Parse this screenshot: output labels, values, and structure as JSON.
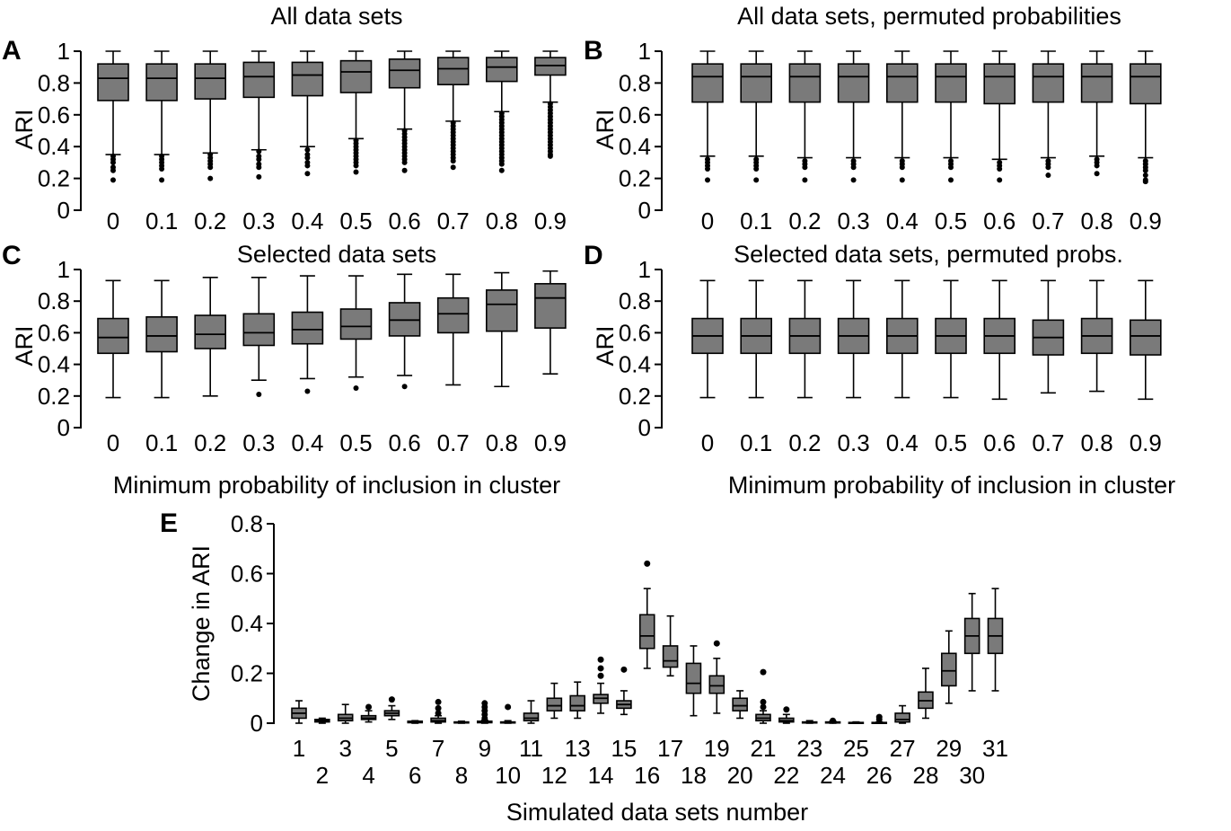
{
  "colors": {
    "box_fill": "#7a7a7a",
    "line": "#000000",
    "background": "#ffffff"
  },
  "chart_data": [
    {
      "panel": "A",
      "type": "boxplot",
      "title": "All data sets",
      "xlabel": "",
      "ylabel": "ARI",
      "ylim": [
        0,
        1
      ],
      "yticks": [
        "0",
        "0.2",
        "0.4",
        "0.6",
        "0.8",
        "1"
      ],
      "categories": [
        "0",
        "0.1",
        "0.2",
        "0.3",
        "0.4",
        "0.5",
        "0.6",
        "0.7",
        "0.8",
        "0.9"
      ],
      "boxes": [
        {
          "whislo": 0.35,
          "q1": 0.69,
          "med": 0.83,
          "q3": 0.92,
          "whishi": 1.0,
          "fliers": [
            0.34,
            0.32,
            0.3,
            0.27,
            0.25,
            0.19
          ]
        },
        {
          "whislo": 0.35,
          "q1": 0.69,
          "med": 0.83,
          "q3": 0.92,
          "whishi": 1.0,
          "fliers": [
            0.34,
            0.32,
            0.3,
            0.28,
            0.26,
            0.19
          ]
        },
        {
          "whislo": 0.36,
          "q1": 0.7,
          "med": 0.83,
          "q3": 0.92,
          "whishi": 1.0,
          "fliers": [
            0.35,
            0.33,
            0.31,
            0.29,
            0.27,
            0.2
          ]
        },
        {
          "whislo": 0.38,
          "q1": 0.71,
          "med": 0.84,
          "q3": 0.93,
          "whishi": 1.0,
          "fliers": [
            0.37,
            0.34,
            0.32,
            0.29,
            0.27,
            0.21
          ]
        },
        {
          "whislo": 0.4,
          "q1": 0.72,
          "med": 0.85,
          "q3": 0.93,
          "whishi": 1.0,
          "fliers": [
            0.38,
            0.35,
            0.33,
            0.3,
            0.28,
            0.23
          ]
        },
        {
          "whislo": 0.45,
          "q1": 0.74,
          "med": 0.87,
          "q3": 0.94,
          "whishi": 1.0,
          "fliers": [
            0.44,
            0.42,
            0.4,
            0.38,
            0.36,
            0.34,
            0.32,
            0.3,
            0.28,
            0.24
          ]
        },
        {
          "whislo": 0.51,
          "q1": 0.77,
          "med": 0.88,
          "q3": 0.95,
          "whishi": 1.0,
          "fliers": [
            0.5,
            0.48,
            0.46,
            0.44,
            0.42,
            0.4,
            0.38,
            0.36,
            0.34,
            0.32,
            0.3,
            0.25
          ]
        },
        {
          "whislo": 0.56,
          "q1": 0.79,
          "med": 0.89,
          "q3": 0.96,
          "whishi": 1.0,
          "fliers": [
            0.55,
            0.53,
            0.51,
            0.49,
            0.47,
            0.45,
            0.43,
            0.41,
            0.39,
            0.37,
            0.35,
            0.33,
            0.31,
            0.27
          ]
        },
        {
          "whislo": 0.62,
          "q1": 0.81,
          "med": 0.9,
          "q3": 0.96,
          "whishi": 1.0,
          "fliers": [
            0.61,
            0.59,
            0.57,
            0.55,
            0.53,
            0.51,
            0.49,
            0.47,
            0.45,
            0.43,
            0.41,
            0.39,
            0.37,
            0.35,
            0.33,
            0.31,
            0.29,
            0.25
          ]
        },
        {
          "whislo": 0.68,
          "q1": 0.85,
          "med": 0.91,
          "q3": 0.96,
          "whishi": 1.0,
          "fliers": [
            0.67,
            0.65,
            0.63,
            0.61,
            0.59,
            0.57,
            0.55,
            0.53,
            0.51,
            0.49,
            0.47,
            0.45,
            0.43,
            0.41,
            0.39,
            0.37,
            0.35,
            0.34
          ]
        }
      ]
    },
    {
      "panel": "B",
      "type": "boxplot",
      "title": "All data sets, permuted probabilities",
      "xlabel": "",
      "ylabel": "ARI",
      "ylim": [
        0,
        1
      ],
      "yticks": [
        "0",
        "0.2",
        "0.4",
        "0.6",
        "0.8",
        "1"
      ],
      "categories": [
        "0",
        "0.1",
        "0.2",
        "0.3",
        "0.4",
        "0.5",
        "0.6",
        "0.7",
        "0.8",
        "0.9"
      ],
      "boxes": [
        {
          "whislo": 0.34,
          "q1": 0.68,
          "med": 0.84,
          "q3": 0.92,
          "whishi": 1.0,
          "fliers": [
            0.32,
            0.3,
            0.28,
            0.26,
            0.19
          ]
        },
        {
          "whislo": 0.34,
          "q1": 0.68,
          "med": 0.84,
          "q3": 0.92,
          "whishi": 1.0,
          "fliers": [
            0.32,
            0.3,
            0.28,
            0.26,
            0.19
          ]
        },
        {
          "whislo": 0.33,
          "q1": 0.68,
          "med": 0.84,
          "q3": 0.92,
          "whishi": 1.0,
          "fliers": [
            0.31,
            0.29,
            0.27,
            0.19
          ]
        },
        {
          "whislo": 0.33,
          "q1": 0.68,
          "med": 0.84,
          "q3": 0.92,
          "whishi": 1.0,
          "fliers": [
            0.31,
            0.29,
            0.27,
            0.19
          ]
        },
        {
          "whislo": 0.33,
          "q1": 0.68,
          "med": 0.84,
          "q3": 0.92,
          "whishi": 1.0,
          "fliers": [
            0.31,
            0.29,
            0.27,
            0.19
          ]
        },
        {
          "whislo": 0.33,
          "q1": 0.68,
          "med": 0.84,
          "q3": 0.92,
          "whishi": 1.0,
          "fliers": [
            0.31,
            0.29,
            0.27,
            0.19
          ]
        },
        {
          "whislo": 0.32,
          "q1": 0.67,
          "med": 0.84,
          "q3": 0.92,
          "whishi": 1.0,
          "fliers": [
            0.3,
            0.28,
            0.26,
            0.19
          ]
        },
        {
          "whislo": 0.33,
          "q1": 0.68,
          "med": 0.84,
          "q3": 0.92,
          "whishi": 1.0,
          "fliers": [
            0.31,
            0.29,
            0.27,
            0.22
          ]
        },
        {
          "whislo": 0.34,
          "q1": 0.68,
          "med": 0.84,
          "q3": 0.92,
          "whishi": 1.0,
          "fliers": [
            0.32,
            0.3,
            0.28,
            0.23
          ]
        },
        {
          "whislo": 0.33,
          "q1": 0.67,
          "med": 0.84,
          "q3": 0.92,
          "whishi": 1.0,
          "fliers": [
            0.31,
            0.29,
            0.27,
            0.25,
            0.22,
            0.19,
            0.18
          ]
        }
      ]
    },
    {
      "panel": "C",
      "type": "boxplot",
      "title": "Selected data sets",
      "xlabel": "Minimum probability of inclusion in cluster",
      "ylabel": "ARI",
      "ylim": [
        0,
        1
      ],
      "yticks": [
        "0",
        "0.2",
        "0.4",
        "0.6",
        "0.8",
        "1"
      ],
      "categories": [
        "0",
        "0.1",
        "0.2",
        "0.3",
        "0.4",
        "0.5",
        "0.6",
        "0.7",
        "0.8",
        "0.9"
      ],
      "boxes": [
        {
          "whislo": 0.19,
          "q1": 0.47,
          "med": 0.57,
          "q3": 0.69,
          "whishi": 0.93,
          "fliers": []
        },
        {
          "whislo": 0.19,
          "q1": 0.48,
          "med": 0.58,
          "q3": 0.7,
          "whishi": 0.93,
          "fliers": []
        },
        {
          "whislo": 0.2,
          "q1": 0.5,
          "med": 0.59,
          "q3": 0.71,
          "whishi": 0.95,
          "fliers": []
        },
        {
          "whislo": 0.3,
          "q1": 0.52,
          "med": 0.6,
          "q3": 0.72,
          "whishi": 0.95,
          "fliers": [
            0.21
          ]
        },
        {
          "whislo": 0.31,
          "q1": 0.53,
          "med": 0.62,
          "q3": 0.73,
          "whishi": 0.96,
          "fliers": [
            0.23
          ]
        },
        {
          "whislo": 0.32,
          "q1": 0.56,
          "med": 0.64,
          "q3": 0.75,
          "whishi": 0.96,
          "fliers": [
            0.25
          ]
        },
        {
          "whislo": 0.33,
          "q1": 0.58,
          "med": 0.68,
          "q3": 0.79,
          "whishi": 0.97,
          "fliers": [
            0.26
          ]
        },
        {
          "whislo": 0.27,
          "q1": 0.6,
          "med": 0.72,
          "q3": 0.82,
          "whishi": 0.97,
          "fliers": []
        },
        {
          "whislo": 0.26,
          "q1": 0.61,
          "med": 0.78,
          "q3": 0.87,
          "whishi": 0.98,
          "fliers": []
        },
        {
          "whislo": 0.34,
          "q1": 0.63,
          "med": 0.82,
          "q3": 0.91,
          "whishi": 0.99,
          "fliers": []
        }
      ]
    },
    {
      "panel": "D",
      "type": "boxplot",
      "title": "Selected data sets, permuted probs.",
      "xlabel": "Minimum probability of inclusion in cluster",
      "ylabel": "ARI",
      "ylim": [
        0,
        1
      ],
      "yticks": [
        "0",
        "0.2",
        "0.4",
        "0.6",
        "0.8",
        "1"
      ],
      "categories": [
        "0",
        "0.1",
        "0.2",
        "0.3",
        "0.4",
        "0.5",
        "0.6",
        "0.7",
        "0.8",
        "0.9"
      ],
      "boxes": [
        {
          "whislo": 0.19,
          "q1": 0.47,
          "med": 0.58,
          "q3": 0.69,
          "whishi": 0.93,
          "fliers": []
        },
        {
          "whislo": 0.19,
          "q1": 0.47,
          "med": 0.58,
          "q3": 0.69,
          "whishi": 0.93,
          "fliers": []
        },
        {
          "whislo": 0.19,
          "q1": 0.47,
          "med": 0.58,
          "q3": 0.69,
          "whishi": 0.93,
          "fliers": []
        },
        {
          "whislo": 0.19,
          "q1": 0.47,
          "med": 0.58,
          "q3": 0.69,
          "whishi": 0.93,
          "fliers": []
        },
        {
          "whislo": 0.19,
          "q1": 0.47,
          "med": 0.58,
          "q3": 0.69,
          "whishi": 0.93,
          "fliers": []
        },
        {
          "whislo": 0.19,
          "q1": 0.47,
          "med": 0.58,
          "q3": 0.69,
          "whishi": 0.93,
          "fliers": []
        },
        {
          "whislo": 0.18,
          "q1": 0.47,
          "med": 0.58,
          "q3": 0.69,
          "whishi": 0.93,
          "fliers": []
        },
        {
          "whislo": 0.22,
          "q1": 0.46,
          "med": 0.57,
          "q3": 0.68,
          "whishi": 0.93,
          "fliers": []
        },
        {
          "whislo": 0.23,
          "q1": 0.47,
          "med": 0.58,
          "q3": 0.69,
          "whishi": 0.93,
          "fliers": []
        },
        {
          "whislo": 0.18,
          "q1": 0.46,
          "med": 0.58,
          "q3": 0.68,
          "whishi": 0.93,
          "fliers": []
        }
      ]
    },
    {
      "panel": "E",
      "type": "boxplot",
      "title": "",
      "xlabel": "Simulated data sets number",
      "ylabel": "Change in ARI",
      "ylim": [
        0,
        0.8
      ],
      "yticks": [
        "0",
        "0.2",
        "0.4",
        "0.6",
        "0.8"
      ],
      "categories": [
        "1",
        "2",
        "3",
        "4",
        "5",
        "6",
        "7",
        "8",
        "9",
        "10",
        "11",
        "12",
        "13",
        "14",
        "15",
        "16",
        "17",
        "18",
        "19",
        "20",
        "21",
        "22",
        "23",
        "24",
        "25",
        "26",
        "27",
        "28",
        "29",
        "30",
        "31"
      ],
      "boxes": [
        {
          "whislo": 0.0,
          "q1": 0.02,
          "med": 0.04,
          "q3": 0.06,
          "whishi": 0.09,
          "fliers": []
        },
        {
          "whislo": 0.0,
          "q1": 0.005,
          "med": 0.01,
          "q3": 0.015,
          "whishi": 0.02,
          "fliers": []
        },
        {
          "whislo": 0.0,
          "q1": 0.01,
          "med": 0.02,
          "q3": 0.035,
          "whishi": 0.075,
          "fliers": []
        },
        {
          "whislo": 0.005,
          "q1": 0.015,
          "med": 0.02,
          "q3": 0.03,
          "whishi": 0.05,
          "fliers": [
            0.065
          ]
        },
        {
          "whislo": 0.015,
          "q1": 0.03,
          "med": 0.04,
          "q3": 0.05,
          "whishi": 0.07,
          "fliers": [
            0.095
          ]
        },
        {
          "whislo": 0.0,
          "q1": 0.002,
          "med": 0.005,
          "q3": 0.008,
          "whishi": 0.01,
          "fliers": []
        },
        {
          "whislo": 0.0,
          "q1": 0.005,
          "med": 0.01,
          "q3": 0.02,
          "whishi": 0.03,
          "fliers": [
            0.04,
            0.06,
            0.085
          ]
        },
        {
          "whislo": 0.0,
          "q1": 0.001,
          "med": 0.003,
          "q3": 0.005,
          "whishi": 0.008,
          "fliers": []
        },
        {
          "whislo": 0.0,
          "q1": 0.002,
          "med": 0.005,
          "q3": 0.008,
          "whishi": 0.012,
          "fliers": [
            0.02,
            0.035,
            0.05,
            0.065,
            0.08
          ]
        },
        {
          "whislo": 0.0,
          "q1": 0.001,
          "med": 0.003,
          "q3": 0.005,
          "whishi": 0.01,
          "fliers": [
            0.065
          ]
        },
        {
          "whislo": 0.0,
          "q1": 0.01,
          "med": 0.02,
          "q3": 0.04,
          "whishi": 0.09,
          "fliers": []
        },
        {
          "whislo": 0.02,
          "q1": 0.05,
          "med": 0.07,
          "q3": 0.1,
          "whishi": 0.16,
          "fliers": []
        },
        {
          "whislo": 0.02,
          "q1": 0.05,
          "med": 0.07,
          "q3": 0.11,
          "whishi": 0.165,
          "fliers": []
        },
        {
          "whislo": 0.04,
          "q1": 0.08,
          "med": 0.1,
          "q3": 0.115,
          "whishi": 0.16,
          "fliers": [
            0.19,
            0.22,
            0.255
          ]
        },
        {
          "whislo": 0.035,
          "q1": 0.06,
          "med": 0.075,
          "q3": 0.09,
          "whishi": 0.13,
          "fliers": [
            0.215
          ]
        },
        {
          "whislo": 0.22,
          "q1": 0.3,
          "med": 0.35,
          "q3": 0.435,
          "whishi": 0.54,
          "fliers": [
            0.64
          ]
        },
        {
          "whislo": 0.19,
          "q1": 0.225,
          "med": 0.25,
          "q3": 0.31,
          "whishi": 0.43,
          "fliers": []
        },
        {
          "whislo": 0.03,
          "q1": 0.12,
          "med": 0.16,
          "q3": 0.24,
          "whishi": 0.31,
          "fliers": []
        },
        {
          "whislo": 0.04,
          "q1": 0.12,
          "med": 0.15,
          "q3": 0.19,
          "whishi": 0.26,
          "fliers": [
            0.32
          ]
        },
        {
          "whislo": 0.02,
          "q1": 0.05,
          "med": 0.07,
          "q3": 0.1,
          "whishi": 0.13,
          "fliers": []
        },
        {
          "whislo": 0.0,
          "q1": 0.01,
          "med": 0.02,
          "q3": 0.035,
          "whishi": 0.05,
          "fliers": [
            0.065,
            0.085,
            0.205
          ]
        },
        {
          "whislo": 0.0,
          "q1": 0.005,
          "med": 0.01,
          "q3": 0.02,
          "whishi": 0.035,
          "fliers": [
            0.055
          ]
        },
        {
          "whislo": 0.0,
          "q1": 0.001,
          "med": 0.003,
          "q3": 0.005,
          "whishi": 0.01,
          "fliers": []
        },
        {
          "whislo": 0.0,
          "q1": 0.001,
          "med": 0.003,
          "q3": 0.005,
          "whishi": 0.008,
          "fliers": [
            0.01
          ]
        },
        {
          "whislo": 0.0,
          "q1": 0.001,
          "med": 0.002,
          "q3": 0.003,
          "whishi": 0.005,
          "fliers": []
        },
        {
          "whislo": 0.0,
          "q1": 0.001,
          "med": 0.002,
          "q3": 0.003,
          "whishi": 0.005,
          "fliers": [
            0.015,
            0.025
          ]
        },
        {
          "whislo": 0.0,
          "q1": 0.005,
          "med": 0.015,
          "q3": 0.04,
          "whishi": 0.07,
          "fliers": []
        },
        {
          "whislo": 0.02,
          "q1": 0.06,
          "med": 0.09,
          "q3": 0.125,
          "whishi": 0.22,
          "fliers": []
        },
        {
          "whislo": 0.08,
          "q1": 0.15,
          "med": 0.21,
          "q3": 0.28,
          "whishi": 0.37,
          "fliers": []
        },
        {
          "whislo": 0.13,
          "q1": 0.28,
          "med": 0.35,
          "q3": 0.42,
          "whishi": 0.52,
          "fliers": []
        },
        {
          "whislo": 0.13,
          "q1": 0.28,
          "med": 0.35,
          "q3": 0.42,
          "whishi": 0.54,
          "fliers": []
        }
      ]
    }
  ]
}
